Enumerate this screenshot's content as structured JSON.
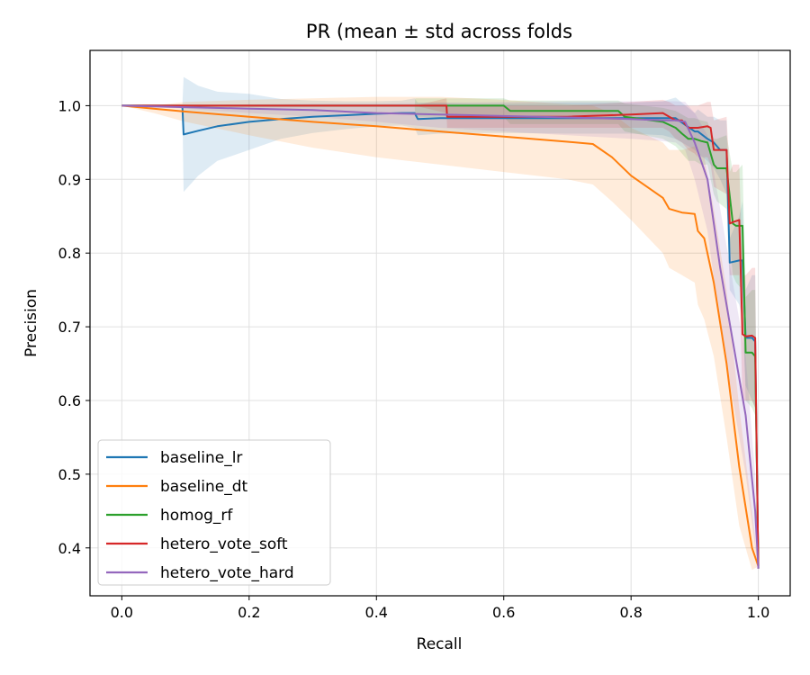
{
  "chart_data": {
    "type": "line",
    "title": "PR (mean ± std across folds",
    "xlabel": "Recall",
    "ylabel": "Precision",
    "xlim": [
      -0.05,
      1.05
    ],
    "ylim": [
      0.335,
      1.075
    ],
    "xticks": [
      0.0,
      0.2,
      0.4,
      0.6,
      0.8,
      1.0
    ],
    "xtick_labels": [
      "0.0",
      "0.2",
      "0.4",
      "0.6",
      "0.8",
      "1.0"
    ],
    "yticks": [
      0.4,
      0.5,
      0.6,
      0.7,
      0.8,
      0.9,
      1.0
    ],
    "ytick_labels": [
      "0.4",
      "0.5",
      "0.6",
      "0.7",
      "0.8",
      "0.9",
      "1.0"
    ],
    "grid": true,
    "legend_position": "lower-left",
    "series": [
      {
        "name": "baseline_lr",
        "color": "#1f77b4",
        "x": [
          0.0,
          0.095,
          0.097,
          0.12,
          0.15,
          0.2,
          0.25,
          0.3,
          0.35,
          0.4,
          0.44,
          0.46,
          0.465,
          0.5,
          0.55,
          0.6,
          0.7,
          0.8,
          0.85,
          0.87,
          0.9,
          0.905,
          0.92,
          0.93,
          0.94,
          0.95,
          0.955,
          0.97,
          0.975,
          0.98,
          0.99,
          0.995,
          1.0
        ],
        "y": [
          1.0,
          1.0,
          0.961,
          0.966,
          0.972,
          0.978,
          0.982,
          0.985,
          0.987,
          0.989,
          0.99,
          0.99,
          0.982,
          0.983,
          0.983,
          0.983,
          0.983,
          0.983,
          0.983,
          0.983,
          0.965,
          0.965,
          0.955,
          0.95,
          0.94,
          0.94,
          0.787,
          0.79,
          0.79,
          0.685,
          0.685,
          0.68,
          0.372
        ],
        "lower": [
          1.0,
          1.0,
          0.883,
          0.905,
          0.925,
          0.94,
          0.955,
          0.963,
          0.968,
          0.972,
          0.973,
          0.97,
          0.96,
          0.962,
          0.963,
          0.963,
          0.962,
          0.962,
          0.96,
          0.955,
          0.94,
          0.935,
          0.925,
          0.915,
          0.9,
          0.88,
          0.75,
          0.73,
          0.71,
          0.62,
          0.6,
          0.59,
          0.372
        ],
        "upper": [
          1.0,
          1.0,
          1.039,
          1.027,
          1.019,
          1.016,
          1.009,
          1.007,
          1.006,
          1.006,
          1.007,
          1.01,
          1.004,
          1.004,
          1.003,
          1.003,
          1.004,
          1.004,
          1.006,
          1.011,
          0.99,
          0.995,
          0.985,
          0.985,
          0.98,
          0.98,
          0.82,
          0.85,
          0.87,
          0.75,
          0.77,
          0.77,
          0.372
        ]
      },
      {
        "name": "baseline_dt",
        "color": "#ff7f0e",
        "x": [
          0.0,
          0.05,
          0.1,
          0.2,
          0.3,
          0.4,
          0.5,
          0.6,
          0.7,
          0.74,
          0.77,
          0.8,
          0.85,
          0.86,
          0.88,
          0.9,
          0.905,
          0.915,
          0.93,
          0.95,
          0.97,
          0.99,
          1.0
        ],
        "y": [
          1.0,
          0.996,
          0.992,
          0.985,
          0.978,
          0.972,
          0.965,
          0.958,
          0.951,
          0.948,
          0.93,
          0.905,
          0.875,
          0.86,
          0.855,
          0.853,
          0.83,
          0.82,
          0.76,
          0.65,
          0.51,
          0.4,
          0.375
        ],
        "lower": [
          1.0,
          0.99,
          0.978,
          0.96,
          0.943,
          0.93,
          0.92,
          0.91,
          0.9,
          0.893,
          0.87,
          0.845,
          0.8,
          0.78,
          0.77,
          0.76,
          0.73,
          0.71,
          0.66,
          0.55,
          0.43,
          0.37,
          0.375
        ],
        "upper": [
          1.0,
          1.0,
          1.005,
          1.008,
          1.01,
          1.012,
          1.012,
          1.008,
          1.002,
          1.0,
          0.99,
          0.97,
          0.95,
          0.94,
          0.94,
          0.945,
          0.93,
          0.93,
          0.86,
          0.75,
          0.59,
          0.45,
          0.375
        ]
      },
      {
        "name": "homog_rf",
        "color": "#2ca02c",
        "x": [
          0.0,
          0.46,
          0.461,
          0.6,
          0.61,
          0.78,
          0.79,
          0.85,
          0.87,
          0.88,
          0.89,
          0.9,
          0.91,
          0.92,
          0.93,
          0.935,
          0.95,
          0.96,
          0.965,
          0.975,
          0.98,
          0.99,
          0.995,
          1.0
        ],
        "y": [
          1.0,
          1.0,
          1.0,
          1.0,
          0.993,
          0.993,
          0.985,
          0.978,
          0.97,
          0.962,
          0.955,
          0.955,
          0.952,
          0.95,
          0.92,
          0.915,
          0.915,
          0.84,
          0.837,
          0.837,
          0.665,
          0.665,
          0.66,
          0.375
        ],
        "lower": [
          1.0,
          1.0,
          0.985,
          0.985,
          0.975,
          0.975,
          0.965,
          0.955,
          0.945,
          0.935,
          0.925,
          0.925,
          0.92,
          0.92,
          0.88,
          0.87,
          0.86,
          0.77,
          0.76,
          0.75,
          0.6,
          0.59,
          0.58,
          0.375
        ],
        "upper": [
          1.0,
          1.0,
          1.01,
          1.01,
          1.007,
          1.007,
          1.003,
          0.997,
          0.993,
          0.988,
          0.983,
          0.983,
          0.98,
          0.978,
          0.955,
          0.955,
          0.96,
          0.91,
          0.91,
          0.92,
          0.74,
          0.75,
          0.75,
          0.375
        ]
      },
      {
        "name": "hetero_vote_soft",
        "color": "#d62728",
        "x": [
          0.0,
          0.46,
          0.51,
          0.511,
          0.6,
          0.7,
          0.8,
          0.85,
          0.86,
          0.87,
          0.88,
          0.89,
          0.9,
          0.905,
          0.92,
          0.925,
          0.93,
          0.95,
          0.955,
          0.96,
          0.97,
          0.975,
          0.98,
          0.99,
          0.995,
          1.0
        ],
        "y": [
          1.0,
          1.0,
          1.0,
          0.985,
          0.985,
          0.985,
          0.988,
          0.99,
          0.985,
          0.98,
          0.98,
          0.97,
          0.97,
          0.97,
          0.972,
          0.97,
          0.94,
          0.94,
          0.84,
          0.842,
          0.845,
          0.69,
          0.687,
          0.688,
          0.685,
          0.372
        ],
        "lower": [
          1.0,
          1.0,
          0.99,
          0.97,
          0.97,
          0.97,
          0.97,
          0.97,
          0.965,
          0.955,
          0.95,
          0.94,
          0.935,
          0.93,
          0.93,
          0.92,
          0.89,
          0.88,
          0.77,
          0.77,
          0.77,
          0.6,
          0.6,
          0.6,
          0.59,
          0.372
        ],
        "upper": [
          1.0,
          1.0,
          1.01,
          1.0,
          1.0,
          1.0,
          1.005,
          1.008,
          1.005,
          1.0,
          1.0,
          1.0,
          1.0,
          1.0,
          1.005,
          1.005,
          0.98,
          0.985,
          0.91,
          0.92,
          0.92,
          0.77,
          0.77,
          0.78,
          0.78,
          0.372
        ]
      },
      {
        "name": "hetero_vote_hard",
        "color": "#9467bd",
        "x": [
          0.0,
          0.1,
          0.2,
          0.3,
          0.4,
          0.5,
          0.6,
          0.7,
          0.8,
          0.85,
          0.87,
          0.885,
          0.9,
          0.92,
          0.94,
          0.96,
          0.98,
          0.995,
          1.0
        ],
        "y": [
          1.0,
          0.998,
          0.996,
          0.994,
          0.99,
          0.988,
          0.986,
          0.984,
          0.982,
          0.98,
          0.98,
          0.978,
          0.95,
          0.9,
          0.78,
          0.68,
          0.58,
          0.45,
          0.372
        ],
        "lower": [
          1.0,
          0.996,
          0.99,
          0.985,
          0.978,
          0.97,
          0.965,
          0.96,
          0.955,
          0.952,
          0.95,
          0.94,
          0.9,
          0.83,
          0.7,
          0.6,
          0.5,
          0.4,
          0.372
        ],
        "upper": [
          1.0,
          1.0,
          1.002,
          1.003,
          1.003,
          1.004,
          1.005,
          1.006,
          1.006,
          1.006,
          1.006,
          1.005,
          0.99,
          0.96,
          0.86,
          0.76,
          0.66,
          0.5,
          0.372
        ]
      }
    ]
  }
}
